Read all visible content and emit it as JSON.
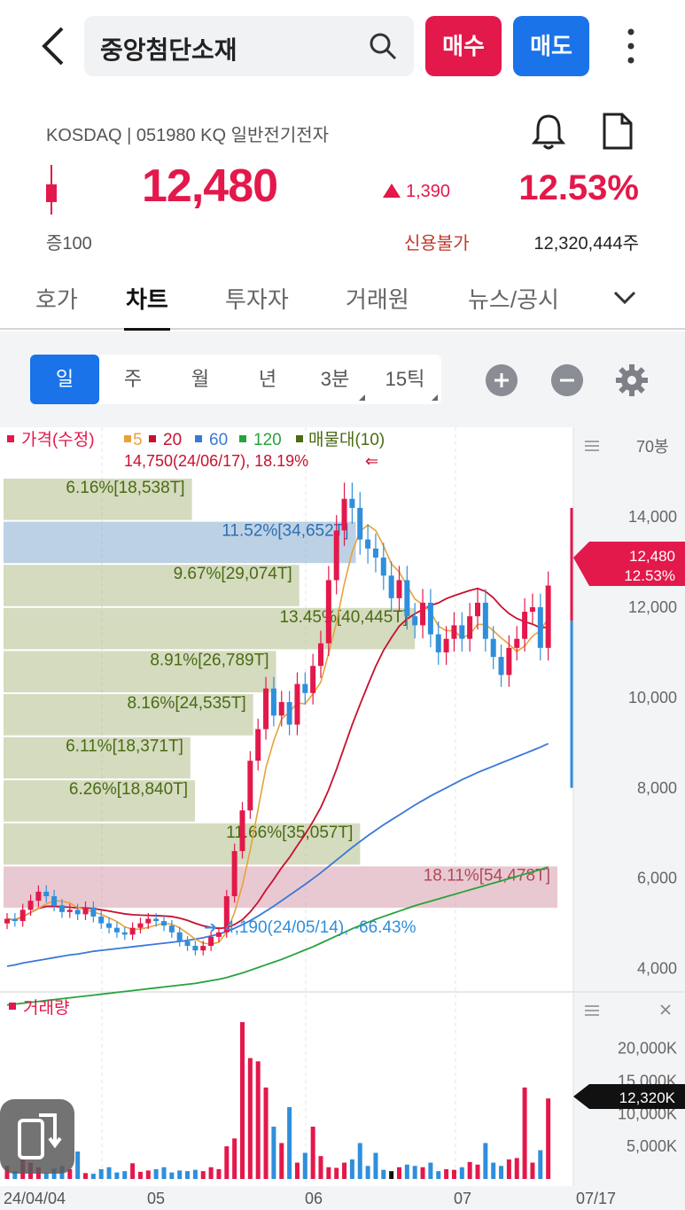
{
  "header": {
    "stock_name": "중앙첨단소재",
    "buy_label": "매수",
    "sell_label": "매도"
  },
  "quote": {
    "market_line": "KOSDAQ | 051980 KQ 일반전기전자",
    "price": "12,480",
    "change": "1,390",
    "change_pct": "12.53%",
    "margin": "증100",
    "credit": "신용불가",
    "shares": "12,320,444주"
  },
  "tabs": [
    {
      "label": "호가"
    },
    {
      "label": "차트"
    },
    {
      "label": "투자자"
    },
    {
      "label": "거래원"
    },
    {
      "label": "뉴스/공시"
    }
  ],
  "periods": [
    "일",
    "주",
    "월",
    "년",
    "3분",
    "15틱"
  ],
  "colors": {
    "up": "#e3184b",
    "down": "#2f8fdc",
    "ma5": "#e8a23a",
    "ma20": "#c8102e",
    "ma60": "#3a78d8",
    "ma120": "#27a33b",
    "vp": "#4a6b12"
  },
  "legend": {
    "price": "가격(수정)",
    "ma5": "5",
    "ma20": "20",
    "ma60": "60",
    "ma120": "120",
    "vp": "매물대(10)"
  },
  "annotations": {
    "high": "14,750(24/06/17), 18.19%",
    "low": "4,190(24/05/14), -66.43%",
    "current_price": "12,480",
    "current_pct": "12.53%",
    "current_volume": "12,320K",
    "candle_unit": "70봉"
  },
  "volume_title": "거래량",
  "chart_data": {
    "type": "candlestick",
    "ylim": [
      3500,
      15200
    ],
    "y_ticks": [
      "14,000",
      "12,000",
      "10,000",
      "8,000",
      "6,000",
      "4,000"
    ],
    "volume_ticks": [
      "20,000K",
      "15,000K",
      "10,000K",
      "5,000K"
    ],
    "x_ticks": [
      "24/04/04",
      "05",
      "06",
      "07",
      "07/17"
    ],
    "volume_profile": [
      {
        "label": "6.16%[18,538T]",
        "share": 6.16
      },
      {
        "label": "11.52%[34,652T]",
        "share": 11.52
      },
      {
        "label": "9.67%[29,074T]",
        "share": 9.67
      },
      {
        "label": "13.45%[40,445T]",
        "share": 13.45
      },
      {
        "label": "8.91%[26,789T]",
        "share": 8.91
      },
      {
        "label": "8.16%[24,535T]",
        "share": 8.16
      },
      {
        "label": "6.11%[18,371T]",
        "share": 6.11
      },
      {
        "label": "6.26%[18,840T]",
        "share": 6.26
      },
      {
        "label": "11.66%[35,057T]",
        "share": 11.66
      },
      {
        "label": "18.11%[54,478T]",
        "share": 18.11
      }
    ],
    "closes": [
      5100,
      5050,
      5300,
      5500,
      5700,
      5600,
      5400,
      5250,
      5300,
      5200,
      5350,
      5150,
      5000,
      4900,
      4800,
      4750,
      4900,
      5000,
      5100,
      5050,
      4950,
      4800,
      4600,
      4500,
      4400,
      4500,
      4700,
      4800,
      5600,
      6600,
      7500,
      8600,
      9300,
      10200,
      9600,
      9900,
      9400,
      10300,
      10100,
      10700,
      11200,
      12600,
      13700,
      14400,
      14200,
      13500,
      13300,
      13100,
      12700,
      12200,
      12600,
      11800,
      11600,
      12100,
      11400,
      11000,
      11300,
      11600,
      11300,
      11800,
      12100,
      11300,
      10900,
      10500,
      11100,
      11300,
      11900,
      12000,
      11100,
      12480
    ],
    "ma60": [
      4050,
      4080,
      4120,
      4150,
      4180,
      4210,
      4240,
      4270,
      4300,
      4320,
      4350,
      4380,
      4400,
      4420,
      4440,
      4460,
      4480,
      4500,
      4520,
      4540,
      4560,
      4580,
      4600,
      4620,
      4650,
      4680,
      4720,
      4760,
      4820,
      4890,
      4970,
      5060,
      5160,
      5270,
      5380,
      5500,
      5620,
      5740,
      5860,
      5990,
      6120,
      6260,
      6400,
      6540,
      6680,
      6810,
      6940,
      7060,
      7180,
      7290,
      7400,
      7510,
      7620,
      7720,
      7820,
      7910,
      8000,
      8090,
      8180,
      8260,
      8340,
      8410,
      8480,
      8550,
      8620,
      8690,
      8760,
      8830,
      8900,
      8980
    ],
    "ma120": [
      3190,
      3210,
      3230,
      3250,
      3270,
      3290,
      3310,
      3330,
      3350,
      3370,
      3390,
      3410,
      3430,
      3450,
      3470,
      3490,
      3510,
      3530,
      3550,
      3570,
      3590,
      3610,
      3630,
      3650,
      3670,
      3700,
      3730,
      3760,
      3800,
      3850,
      3900,
      3960,
      4020,
      4080,
      4140,
      4200,
      4270,
      4340,
      4410,
      4480,
      4560,
      4640,
      4720,
      4800,
      4880,
      4950,
      5020,
      5090,
      5150,
      5210,
      5270,
      5330,
      5390,
      5440,
      5490,
      5540,
      5590,
      5640,
      5690,
      5740,
      5790,
      5840,
      5890,
      5940,
      5990,
      6040,
      6090,
      6140,
      6190,
      6250
    ],
    "volume_k": [
      2000,
      1200,
      3000,
      2500,
      1800,
      900,
      1600,
      2000,
      1500,
      4200,
      900,
      800,
      1500,
      1800,
      1000,
      1200,
      2400,
      1100,
      1300,
      1500,
      1800,
      1000,
      1300,
      1200,
      1400,
      1200,
      1800,
      1500,
      5000,
      6200,
      24000,
      18500,
      18000,
      14000,
      8000,
      5500,
      11000,
      2500,
      4000,
      8000,
      3500,
      1800,
      1700,
      2500,
      3000,
      5500,
      2000,
      4000,
      1400,
      1200,
      1800,
      2200,
      2000,
      1800,
      2500,
      1200,
      1500,
      1400,
      1800,
      2600,
      2200,
      5500,
      2500,
      2000,
      3000,
      3200,
      14000,
      2500,
      4400,
      12320
    ]
  }
}
